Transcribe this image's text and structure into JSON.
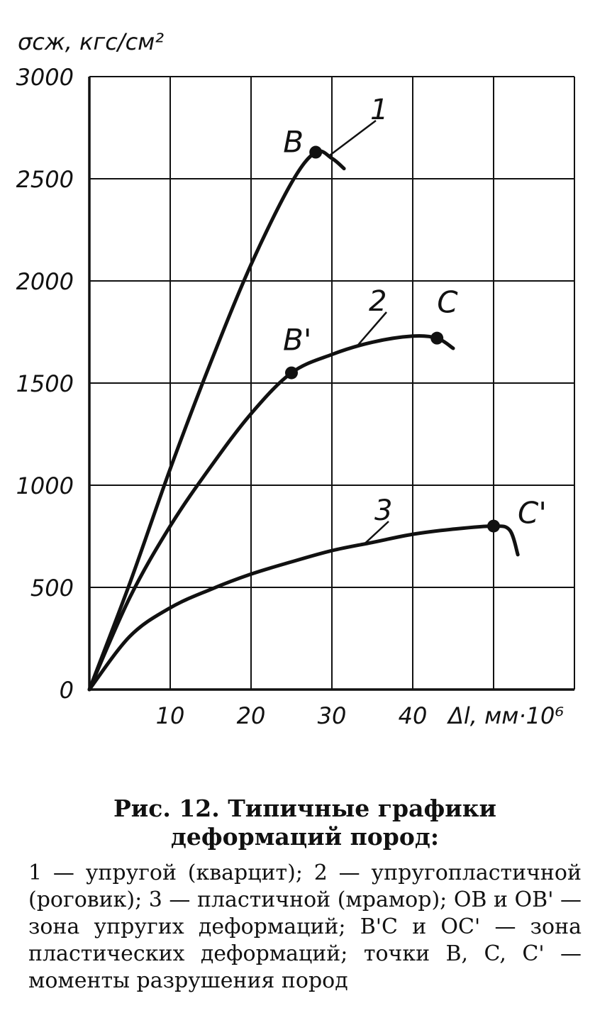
{
  "chart_data": {
    "type": "line",
    "ylabel": "σсж, кгс/см²",
    "xlabel": "Δl, мм·10⁶",
    "xlim": [
      0,
      60
    ],
    "ylim": [
      0,
      3000
    ],
    "x_ticks": [
      10,
      20,
      30,
      40
    ],
    "y_ticks": [
      0,
      500,
      1000,
      1500,
      2000,
      2500,
      3000
    ],
    "grid": true,
    "series": [
      {
        "name": "1",
        "points": [
          [
            0,
            0
          ],
          [
            5,
            520
          ],
          [
            10,
            1080
          ],
          [
            15,
            1600
          ],
          [
            20,
            2080
          ],
          [
            25,
            2480
          ],
          [
            28,
            2630
          ],
          [
            30,
            2600
          ],
          [
            31.5,
            2550
          ]
        ]
      },
      {
        "name": "2",
        "points": [
          [
            0,
            0
          ],
          [
            5,
            450
          ],
          [
            10,
            800
          ],
          [
            15,
            1090
          ],
          [
            20,
            1350
          ],
          [
            25,
            1550
          ],
          [
            30,
            1640
          ],
          [
            35,
            1700
          ],
          [
            40,
            1730
          ],
          [
            43,
            1720
          ],
          [
            45,
            1670
          ]
        ]
      },
      {
        "name": "3",
        "points": [
          [
            0,
            0
          ],
          [
            5,
            260
          ],
          [
            10,
            400
          ],
          [
            15,
            490
          ],
          [
            20,
            565
          ],
          [
            25,
            625
          ],
          [
            30,
            680
          ],
          [
            35,
            720
          ],
          [
            40,
            760
          ],
          [
            45,
            785
          ],
          [
            50,
            800
          ],
          [
            52,
            780
          ],
          [
            53,
            660
          ]
        ]
      }
    ],
    "points": [
      {
        "label": "B",
        "x": 28,
        "y": 2630
      },
      {
        "label": "B'",
        "x": 25,
        "y": 1550
      },
      {
        "label": "C",
        "x": 43,
        "y": 1720
      },
      {
        "label": "C'",
        "x": 50,
        "y": 800
      }
    ]
  },
  "caption": {
    "title": "Рис. 12. Типичные графики деформаций пород:",
    "legend": [
      "1 — упругой (кварцит);",
      "2 — упругопластичной (роговик);",
      "3 — пластичной (мрамор);",
      "OB и OB' — зона упругих деформаций;",
      "B'C и OC' — зона пластических деформаций;",
      "точки B, C, C' — моменты разрушения пород"
    ]
  }
}
